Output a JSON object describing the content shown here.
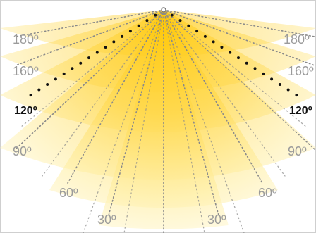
{
  "diagram": {
    "labels": {
      "a180": "180º",
      "a160": "160º",
      "a120": "120º",
      "a90": "90º",
      "a60": "60º",
      "a30": "30º"
    },
    "colors": {
      "frame": "#cfcfcf",
      "beam_center": "#ffcc00",
      "beam_edge": "#fff4c0",
      "dotted_line": "#8a8a8a",
      "highlight_dots": "#111111",
      "label": "#9b9b9b",
      "highlight_label": "#111111"
    },
    "beam_angles": [
      30,
      60,
      90,
      120,
      160,
      180
    ],
    "highlighted_angle": 120
  }
}
